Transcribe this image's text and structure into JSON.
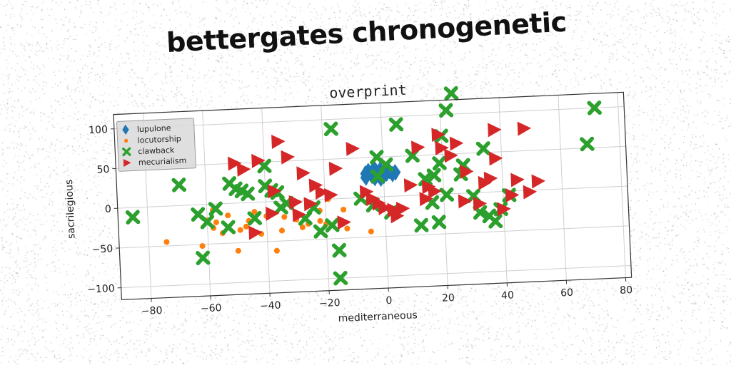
{
  "suptitle": "bettergates chronogenetic",
  "chart_data": {
    "type": "scatter",
    "title": "overprint",
    "xlabel": "mediterraneous",
    "ylabel": "sacrilegious",
    "xlim": [
      -90,
      82
    ],
    "ylim": [
      -115,
      118
    ],
    "xticks": [
      -80,
      -60,
      -40,
      -20,
      0,
      20,
      40,
      60,
      80
    ],
    "yticks": [
      -100,
      -50,
      0,
      50,
      100
    ],
    "xtick_labels": [
      "−80",
      "−60",
      "−40",
      "−20",
      "0",
      "20",
      "40",
      "60",
      "80"
    ],
    "ytick_labels": [
      "−100",
      "−50",
      "0",
      "50",
      "100"
    ],
    "grid": true,
    "legend_position": "upper left",
    "series": [
      {
        "name": "lupulone",
        "marker": "diamond",
        "color": "#1f77b4",
        "points": [
          [
            -6,
            30
          ],
          [
            -5,
            33
          ],
          [
            -3,
            36
          ],
          [
            -1,
            34
          ],
          [
            0,
            31
          ],
          [
            -2,
            28
          ],
          [
            -4,
            27
          ],
          [
            1,
            29
          ],
          [
            2,
            32
          ],
          [
            -6,
            25
          ],
          [
            -3,
            24
          ],
          [
            0,
            26
          ],
          [
            3,
            28
          ],
          [
            4,
            30
          ],
          [
            -1,
            23
          ]
        ]
      },
      {
        "name": "locutorship",
        "marker": "circle",
        "color": "#ff7f0e",
        "points": [
          [
            -74,
            -45
          ],
          [
            -62,
            -52
          ],
          [
            -60,
            -20
          ],
          [
            -58,
            -8
          ],
          [
            -57,
            -23
          ],
          [
            -55,
            -37
          ],
          [
            -50,
            -60
          ],
          [
            -49,
            -34
          ],
          [
            -47,
            -30
          ],
          [
            -46,
            -23
          ],
          [
            -42,
            -40
          ],
          [
            -40,
            -18
          ],
          [
            -37,
            -62
          ],
          [
            -35,
            -37
          ],
          [
            -34,
            -20
          ],
          [
            -30,
            -24
          ],
          [
            -28,
            -34
          ],
          [
            -26,
            -30
          ],
          [
            -22,
            -14
          ],
          [
            -22,
            -27
          ],
          [
            -20,
            -31
          ],
          [
            -19,
            0
          ],
          [
            -14,
            -14
          ],
          [
            -13,
            -38
          ],
          [
            -5,
            -43
          ],
          [
            -58,
            -30
          ],
          [
            -53,
            -15
          ],
          [
            -44,
            -12
          ]
        ]
      },
      {
        "name": "clawback",
        "marker": "x",
        "color": "#2ca02c",
        "points": [
          [
            -85,
            -12
          ],
          [
            -69,
            26
          ],
          [
            -63,
            -12
          ],
          [
            -62,
            -67
          ],
          [
            -60,
            -22
          ],
          [
            -57,
            -6
          ],
          [
            -53,
            -30
          ],
          [
            -52,
            25
          ],
          [
            -50,
            18
          ],
          [
            -48,
            15
          ],
          [
            -46,
            11
          ],
          [
            -44,
            -20
          ],
          [
            -40,
            20
          ],
          [
            -40,
            45
          ],
          [
            -38,
            14
          ],
          [
            -36,
            11
          ],
          [
            -35,
            -8
          ],
          [
            -33,
            -3
          ],
          [
            -27,
            -23
          ],
          [
            -24,
            -10
          ],
          [
            -22,
            -40
          ],
          [
            -18,
            -33
          ],
          [
            -17,
            88
          ],
          [
            -16,
            -65
          ],
          [
            -16,
            -100
          ],
          [
            -8,
            -1
          ],
          [
            -4,
            -10
          ],
          [
            -2,
            26
          ],
          [
            -2,
            50
          ],
          [
            1,
            40
          ],
          [
            2,
            -20
          ],
          [
            5,
            90
          ],
          [
            10,
            50
          ],
          [
            12,
            -38
          ],
          [
            14,
            20
          ],
          [
            16,
            -10
          ],
          [
            17,
            24
          ],
          [
            18,
            -35
          ],
          [
            19,
            39
          ],
          [
            20,
            73
          ],
          [
            21,
            -1
          ],
          [
            22,
            105
          ],
          [
            24,
            126
          ],
          [
            26,
            24
          ],
          [
            27,
            35
          ],
          [
            30,
            -4
          ],
          [
            32,
            -25
          ],
          [
            34,
            55
          ],
          [
            35,
            -30
          ],
          [
            37,
            -37
          ],
          [
            39,
            -22
          ],
          [
            42,
            -5
          ],
          [
            69,
            55
          ],
          [
            72,
            100
          ]
        ]
      },
      {
        "name": "mecurialism",
        "marker": "triangle-right",
        "color": "#d62728",
        "points": [
          [
            -50,
            50
          ],
          [
            -47,
            42
          ],
          [
            -44,
            -38
          ],
          [
            -42,
            52
          ],
          [
            -38,
            -15
          ],
          [
            -37,
            13
          ],
          [
            -35,
            75
          ],
          [
            -32,
            55
          ],
          [
            -30,
            -2
          ],
          [
            -29,
            -18
          ],
          [
            -27,
            34
          ],
          [
            -25,
            -5
          ],
          [
            -23,
            18
          ],
          [
            -21,
            9
          ],
          [
            -18,
            5
          ],
          [
            -16,
            38
          ],
          [
            -14,
            -30
          ],
          [
            -10,
            62
          ],
          [
            -6,
            7
          ],
          [
            -4,
            -2
          ],
          [
            -2,
            -8
          ],
          [
            0,
            -14
          ],
          [
            3,
            -17
          ],
          [
            4,
            -25
          ],
          [
            6,
            -16
          ],
          [
            9,
            13
          ],
          [
            12,
            60
          ],
          [
            14,
            -5
          ],
          [
            15,
            10
          ],
          [
            17,
            4
          ],
          [
            19,
            75
          ],
          [
            20,
            58
          ],
          [
            23,
            48
          ],
          [
            25,
            63
          ],
          [
            27,
            -10
          ],
          [
            28,
            27
          ],
          [
            32,
            -14
          ],
          [
            34,
            12
          ],
          [
            36,
            17
          ],
          [
            38,
            42
          ],
          [
            40,
            -22
          ],
          [
            43,
            -5
          ],
          [
            45,
            14
          ],
          [
            48,
            78
          ],
          [
            49,
            -2
          ],
          [
            52,
            11
          ],
          [
            38,
            78
          ]
        ]
      }
    ]
  }
}
